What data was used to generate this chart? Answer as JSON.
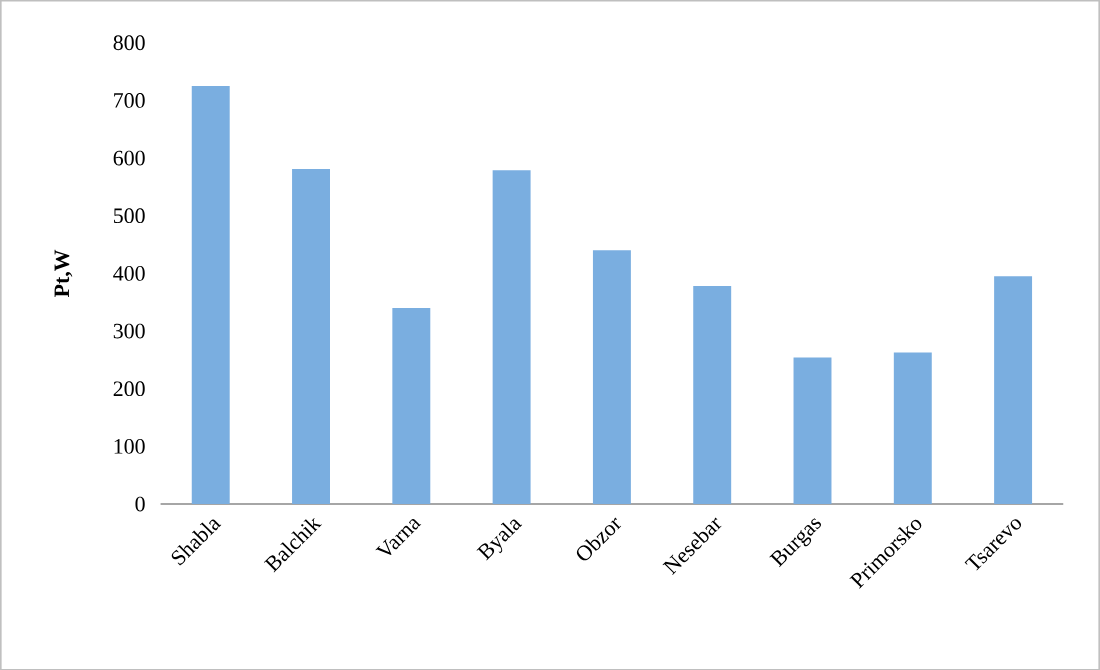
{
  "chart_data": {
    "type": "bar",
    "ylabel": "Pt,W",
    "categories": [
      "Shabla",
      "Balchik",
      "Varna",
      "Byala",
      "Obzor",
      "Nesebar",
      "Burgas",
      "Primorsko",
      "Tsarevo"
    ],
    "values": [
      725,
      581,
      340,
      579,
      440,
      378,
      254,
      263,
      395
    ],
    "color": "#7aaee0",
    "ylim": [
      0,
      800
    ],
    "yticks": [
      0,
      100,
      200,
      300,
      400,
      500,
      600,
      700,
      800
    ]
  }
}
